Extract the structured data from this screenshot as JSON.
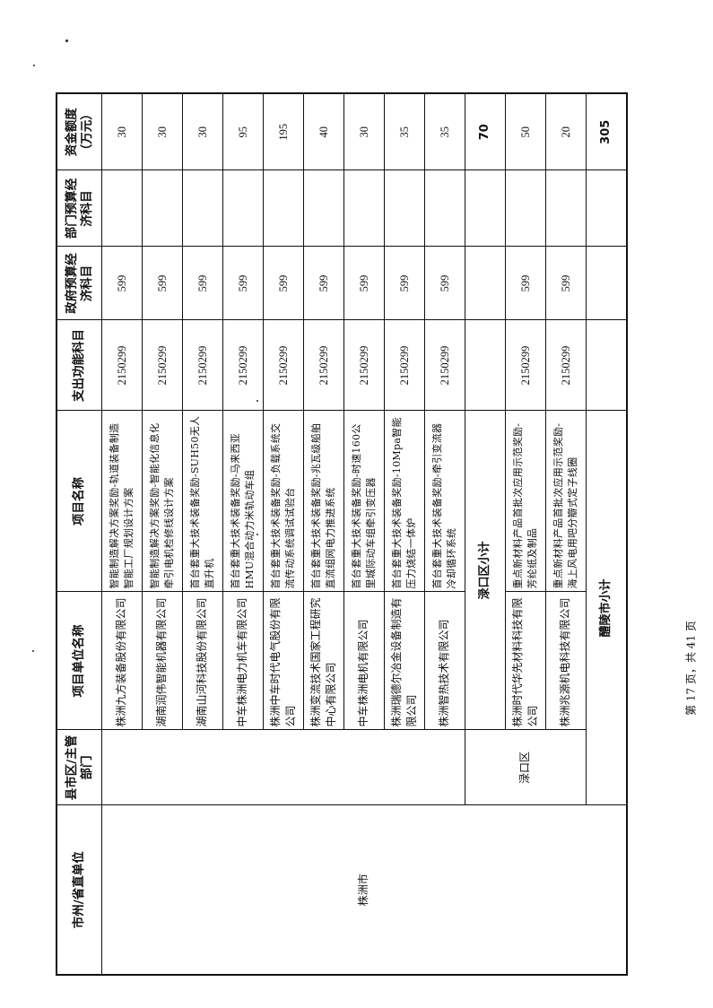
{
  "table": {
    "headers": [
      "市州/省直单位",
      "县市区/主管部门",
      "项目单位名称",
      "项目名称",
      "支出功能科目",
      "政府预算经济科目",
      "部门预算经济科目",
      "资金额度（万元）"
    ],
    "city": "株洲市",
    "rows_a": [
      {
        "unit": "株洲九方装备股份有限公司",
        "project": "智能制造解决方案奖励-轨道装备制造智能工厂规划设计方案",
        "func": "2150299",
        "gov": "599",
        "dept": "",
        "amount": "30"
      },
      {
        "unit": "湖南润伟智能机器有限公司",
        "project": "智能制造解决方案奖励-智能化信息化牵引电机检修线设计方案",
        "func": "2150299",
        "gov": "599",
        "dept": "",
        "amount": "30"
      },
      {
        "unit": "湖南山河科技股份有限公司",
        "project": "首台套重大技术装备奖励-SUH50无人直升机",
        "func": "2150299",
        "gov": "599",
        "dept": "",
        "amount": "30"
      },
      {
        "unit": "中车株洲电力机车有限公司",
        "project": "首台套重大技术装备奖励-马来西亚HMU混合动力米轨动车组",
        "func": "2150299",
        "gov": "599",
        "dept": "",
        "amount": "95"
      },
      {
        "unit": "株洲中车时代电气股份有限公司",
        "project": "首台套重大技术装备奖励-负载系统交流传动系统调试试验台",
        "func": "2150299",
        "gov": "599",
        "dept": "",
        "amount": "195"
      },
      {
        "unit": "株洲变流技术国家工程研究中心有限公司",
        "project": "首台套重大技术装备奖励-兆瓦级船舶直流组网电力推进系统",
        "func": "2150299",
        "gov": "599",
        "dept": "",
        "amount": "40"
      },
      {
        "unit": "中车株洲电机有限公司",
        "project": "首台套重大技术装备奖励-时速160公里城际动车组牵引变压器",
        "func": "2150299",
        "gov": "599",
        "dept": "",
        "amount": "30"
      },
      {
        "unit": "株洲瑞德尔冶金设备制造有限公司",
        "project": "首台套重大技术装备奖励-10Mpa智能压力烧结一体炉",
        "func": "2150299",
        "gov": "599",
        "dept": "",
        "amount": "35"
      },
      {
        "unit": "株洲智热技术有限公司",
        "project": "首台套重大技术装备奖励-牵引变流器冷却循环系统",
        "func": "2150299",
        "gov": "599",
        "dept": "",
        "amount": "35"
      }
    ],
    "county_b": "渌口区",
    "subtotal_b": {
      "label": "渌口区小计",
      "amount": "70"
    },
    "rows_b": [
      {
        "unit": "株洲时代华先材料科技有限公司",
        "project": "重点新材料产品首批次应用示范奖励-芳纶纸及制品",
        "func": "2150299",
        "gov": "599",
        "dept": "",
        "amount": "50"
      },
      {
        "unit": "株洲兆源机电科技有限公司",
        "project": "重点新材料产品首批次应用示范奖励-海上风电用吧分瓣式定子线圈",
        "func": "2150299",
        "gov": "599",
        "dept": "",
        "amount": "20"
      }
    ],
    "total": {
      "label": "醴陵市小计",
      "amount": "305"
    }
  },
  "footer": {
    "page_label": "第 17 页，共 41 页"
  }
}
